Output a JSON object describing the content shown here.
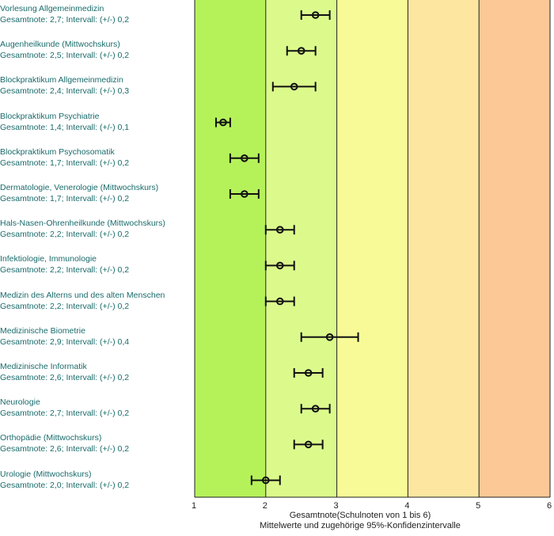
{
  "chart_data": {
    "type": "errorbar",
    "xlabel": "Gesamtnote(Schulnoten von 1 bis 6)",
    "subtitle": "Mittelwerte und zugehörige 95%-Konfidenzintervalle",
    "xlim": [
      1,
      6
    ],
    "ticks": [
      1,
      2,
      3,
      4,
      5,
      6
    ],
    "bands": [
      {
        "from": 1,
        "to": 2,
        "color": "#b5f25a"
      },
      {
        "from": 2,
        "to": 3,
        "color": "#dcfa8c"
      },
      {
        "from": 3,
        "to": 4,
        "color": "#f7fa96"
      },
      {
        "from": 4,
        "to": 5,
        "color": "#fce6a0"
      },
      {
        "from": 5,
        "to": 6,
        "color": "#fcc896"
      }
    ],
    "items": [
      {
        "name": "Vorlesung Allgemeinmedizin",
        "stat": "Gesamtnote: 2,7;  Intervall: (+/-) 0,2",
        "mean": 2.7,
        "ci": 0.2
      },
      {
        "name": "Augenheilkunde (Mittwochskurs)",
        "stat": "Gesamtnote: 2,5;  Intervall: (+/-) 0,2",
        "mean": 2.5,
        "ci": 0.2
      },
      {
        "name": "Blockpraktikum Allgemeinmedizin",
        "stat": "Gesamtnote: 2,4;  Intervall: (+/-) 0,3",
        "mean": 2.4,
        "ci": 0.3
      },
      {
        "name": "Blockpraktikum Psychiatrie",
        "stat": "Gesamtnote: 1,4;  Intervall: (+/-) 0,1",
        "mean": 1.4,
        "ci": 0.1
      },
      {
        "name": "Blockpraktikum Psychosomatik",
        "stat": "Gesamtnote: 1,7;  Intervall: (+/-) 0,2",
        "mean": 1.7,
        "ci": 0.2
      },
      {
        "name": "Dermatologie, Venerologie (Mittwochskurs)",
        "stat": "Gesamtnote: 1,7;  Intervall: (+/-) 0,2",
        "mean": 1.7,
        "ci": 0.2
      },
      {
        "name": "Hals-Nasen-Ohrenheilkunde (Mittwochskurs)",
        "stat": "Gesamtnote: 2,2;  Intervall: (+/-) 0,2",
        "mean": 2.2,
        "ci": 0.2
      },
      {
        "name": "Infektiologie, Immunologie",
        "stat": "Gesamtnote: 2,2;  Intervall: (+/-) 0,2",
        "mean": 2.2,
        "ci": 0.2
      },
      {
        "name": "Medizin des Alterns und des alten Menschen",
        "stat": "Gesamtnote: 2,2;  Intervall: (+/-) 0,2",
        "mean": 2.2,
        "ci": 0.2
      },
      {
        "name": "Medizinische Biometrie",
        "stat": "Gesamtnote: 2,9;  Intervall: (+/-) 0,4",
        "mean": 2.9,
        "ci": 0.4
      },
      {
        "name": "Medizinische Informatik",
        "stat": "Gesamtnote: 2,6;  Intervall: (+/-) 0,2",
        "mean": 2.6,
        "ci": 0.2
      },
      {
        "name": "Neurologie",
        "stat": "Gesamtnote: 2,7;  Intervall: (+/-) 0,2",
        "mean": 2.7,
        "ci": 0.2
      },
      {
        "name": "Orthopädie (Mittwochskurs)",
        "stat": "Gesamtnote: 2,6;  Intervall: (+/-) 0,2",
        "mean": 2.6,
        "ci": 0.2
      },
      {
        "name": "Urologie (Mittwochskurs)",
        "stat": "Gesamtnote: 2,0;  Intervall: (+/-) 0,2",
        "mean": 2.0,
        "ci": 0.2
      }
    ]
  }
}
